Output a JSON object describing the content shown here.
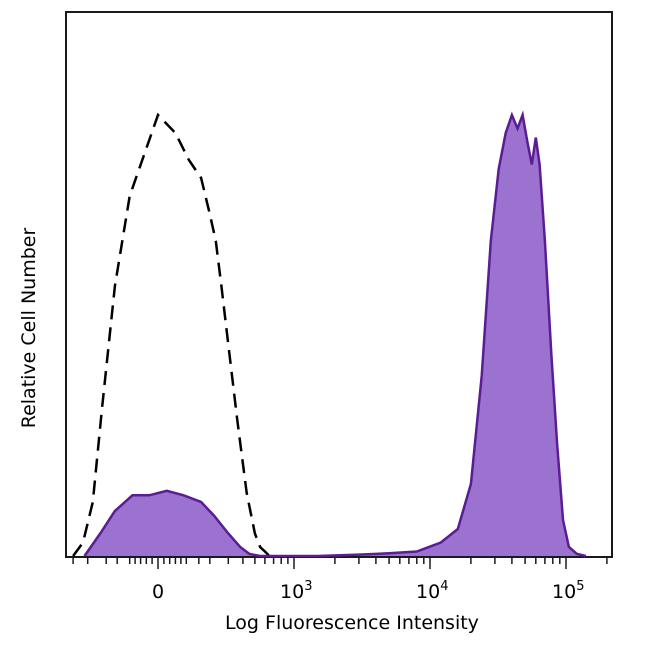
{
  "chart_data": {
    "type": "area",
    "xlabel": "Log Fluorescence Intensity",
    "ylabel": "Relative Cell Number",
    "x_scale": "biexponential",
    "x_ticks": [
      {
        "value": 0,
        "base": "0",
        "exp": ""
      },
      {
        "value": 1000,
        "base": "10",
        "exp": "3"
      },
      {
        "value": 10000,
        "base": "10",
        "exp": "4"
      },
      {
        "value": 100000,
        "base": "10",
        "exp": "5"
      }
    ],
    "ylim": [
      0,
      1
    ],
    "grid": false,
    "legend": "none",
    "series": [
      {
        "style": "dashed",
        "color": "#000000",
        "points": [
          [
            -400,
            0.0
          ],
          [
            -330,
            0.03
          ],
          [
            -270,
            0.12
          ],
          [
            -220,
            0.33
          ],
          [
            -160,
            0.6
          ],
          [
            -100,
            0.8
          ],
          [
            0,
            0.98
          ],
          [
            60,
            0.94
          ],
          [
            110,
            0.88
          ],
          [
            160,
            0.84
          ],
          [
            200,
            0.76
          ],
          [
            230,
            0.7
          ],
          [
            260,
            0.6
          ],
          [
            300,
            0.47
          ],
          [
            360,
            0.3
          ],
          [
            430,
            0.14
          ],
          [
            500,
            0.05
          ],
          [
            550,
            0.02
          ],
          [
            600,
            0.01
          ],
          [
            650,
            0.0
          ]
        ]
      },
      {
        "style": "filled",
        "color": "#5a1d94",
        "fill": "#9b72cf",
        "points": [
          [
            -320,
            0.0
          ],
          [
            -230,
            0.05
          ],
          [
            -160,
            0.1
          ],
          [
            -90,
            0.135
          ],
          [
            -30,
            0.135
          ],
          [
            30,
            0.145
          ],
          [
            90,
            0.135
          ],
          [
            160,
            0.12
          ],
          [
            220,
            0.09
          ],
          [
            300,
            0.05
          ],
          [
            380,
            0.02
          ],
          [
            450,
            0.005
          ],
          [
            550,
            0.0
          ],
          [
            1500,
            0.0
          ],
          [
            3000,
            0.003
          ],
          [
            5000,
            0.006
          ],
          [
            8000,
            0.01
          ],
          [
            12000,
            0.03
          ],
          [
            16000,
            0.06
          ],
          [
            20000,
            0.16
          ],
          [
            24000,
            0.4
          ],
          [
            28000,
            0.7
          ],
          [
            32000,
            0.86
          ],
          [
            36000,
            0.94
          ],
          [
            40000,
            0.98
          ],
          [
            44000,
            0.95
          ],
          [
            48000,
            0.98
          ],
          [
            52000,
            0.92
          ],
          [
            56000,
            0.87
          ],
          [
            60000,
            0.93
          ],
          [
            64000,
            0.87
          ],
          [
            70000,
            0.7
          ],
          [
            78000,
            0.45
          ],
          [
            86000,
            0.25
          ],
          [
            95000,
            0.08
          ],
          [
            105000,
            0.02
          ],
          [
            120000,
            0.005
          ],
          [
            140000,
            0.0
          ]
        ]
      }
    ]
  }
}
